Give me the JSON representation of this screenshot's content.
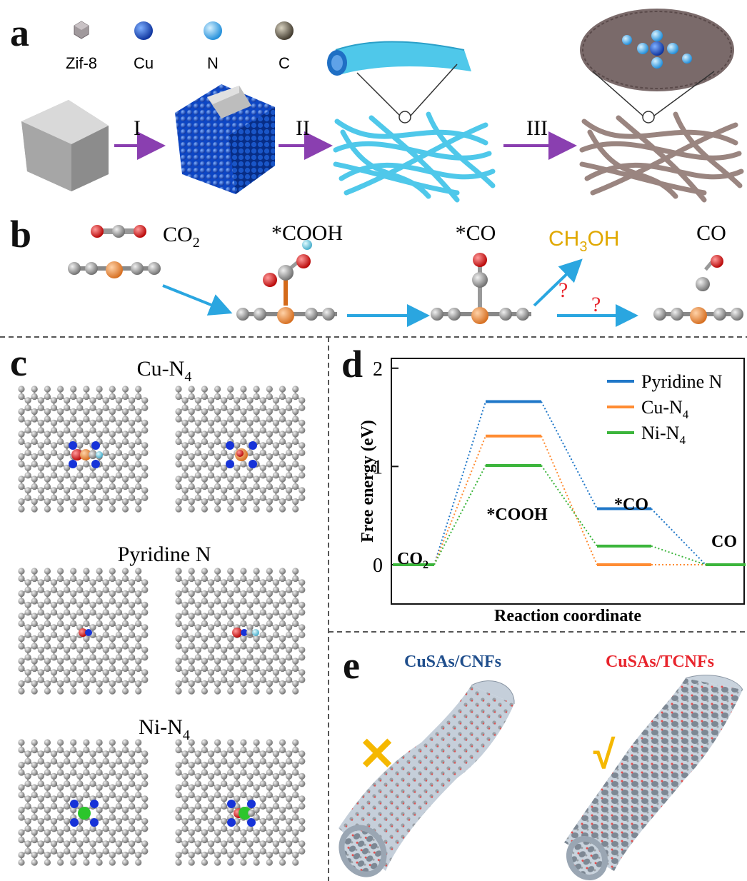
{
  "panels": {
    "a": "a",
    "b": "b",
    "c": "c",
    "d": "d",
    "e": "e"
  },
  "panel_a": {
    "legend": [
      "Zif-8",
      "Cu",
      "N",
      "C"
    ],
    "steps": [
      "I",
      "II",
      "III"
    ]
  },
  "panel_b": {
    "species": {
      "co2": "CO",
      "co2_sub": "2",
      "cooh": "*COOH",
      "co_ads": "*CO",
      "ch3oh_a": "CH",
      "ch3oh_sub": "3",
      "ch3oh_b": "OH",
      "co": "CO"
    },
    "question_mark": "?"
  },
  "panel_c": {
    "labels": {
      "cu_main": "Cu-N",
      "cu_sub": "4",
      "pyridine": "Pyridine N",
      "ni_main": "Ni-N",
      "ni_sub": "4"
    }
  },
  "panel_e": {
    "left_title": "CuSAs/CNFs",
    "right_title": "CuSAs/TCNFs",
    "left_mark": "✕",
    "right_mark": "√",
    "colors": {
      "left_title": "#1f4e8c",
      "right_title": "#e8242c",
      "mark": "#f5b800"
    }
  },
  "chart_data": {
    "type": "line",
    "xlabel": "Reaction coordinate",
    "ylabel": "Free energy (eV)",
    "ylim": [
      -0.4,
      2.1
    ],
    "yticks": [
      "0",
      "1",
      "2"
    ],
    "legend_position": "top-right",
    "states": [
      {
        "label": "CO",
        "sub": "2"
      },
      {
        "label": "*COOH",
        "sub": ""
      },
      {
        "label": "*CO",
        "sub": ""
      },
      {
        "label": "CO",
        "sub": ""
      }
    ],
    "series": [
      {
        "name": "Pyridine N",
        "name_sub": "",
        "color": "#1f77c8",
        "values": [
          0,
          1.66,
          0.57,
          0
        ]
      },
      {
        "name": "Cu-N",
        "name_sub": "4",
        "color": "#ff8c33",
        "values": [
          0,
          1.31,
          0.0,
          0
        ]
      },
      {
        "name": "Ni-N",
        "name_sub": "4",
        "color": "#3cb53c",
        "values": [
          0,
          1.01,
          0.19,
          0
        ]
      }
    ]
  },
  "colors": {
    "cu": "#1a5ed6",
    "n": "#35a6f0",
    "c_atom": "#6b6252",
    "zif": "#a0999c",
    "arrow_purple": "#8a3fb0",
    "arrow_blue": "#2aa6e0",
    "question": "#e8242c",
    "methanol": "#e0a800",
    "carbon_grey": "#8a8a8a",
    "oxygen": "#e01818",
    "n_blue": "#1733d8",
    "ni_green": "#2cc52c"
  }
}
